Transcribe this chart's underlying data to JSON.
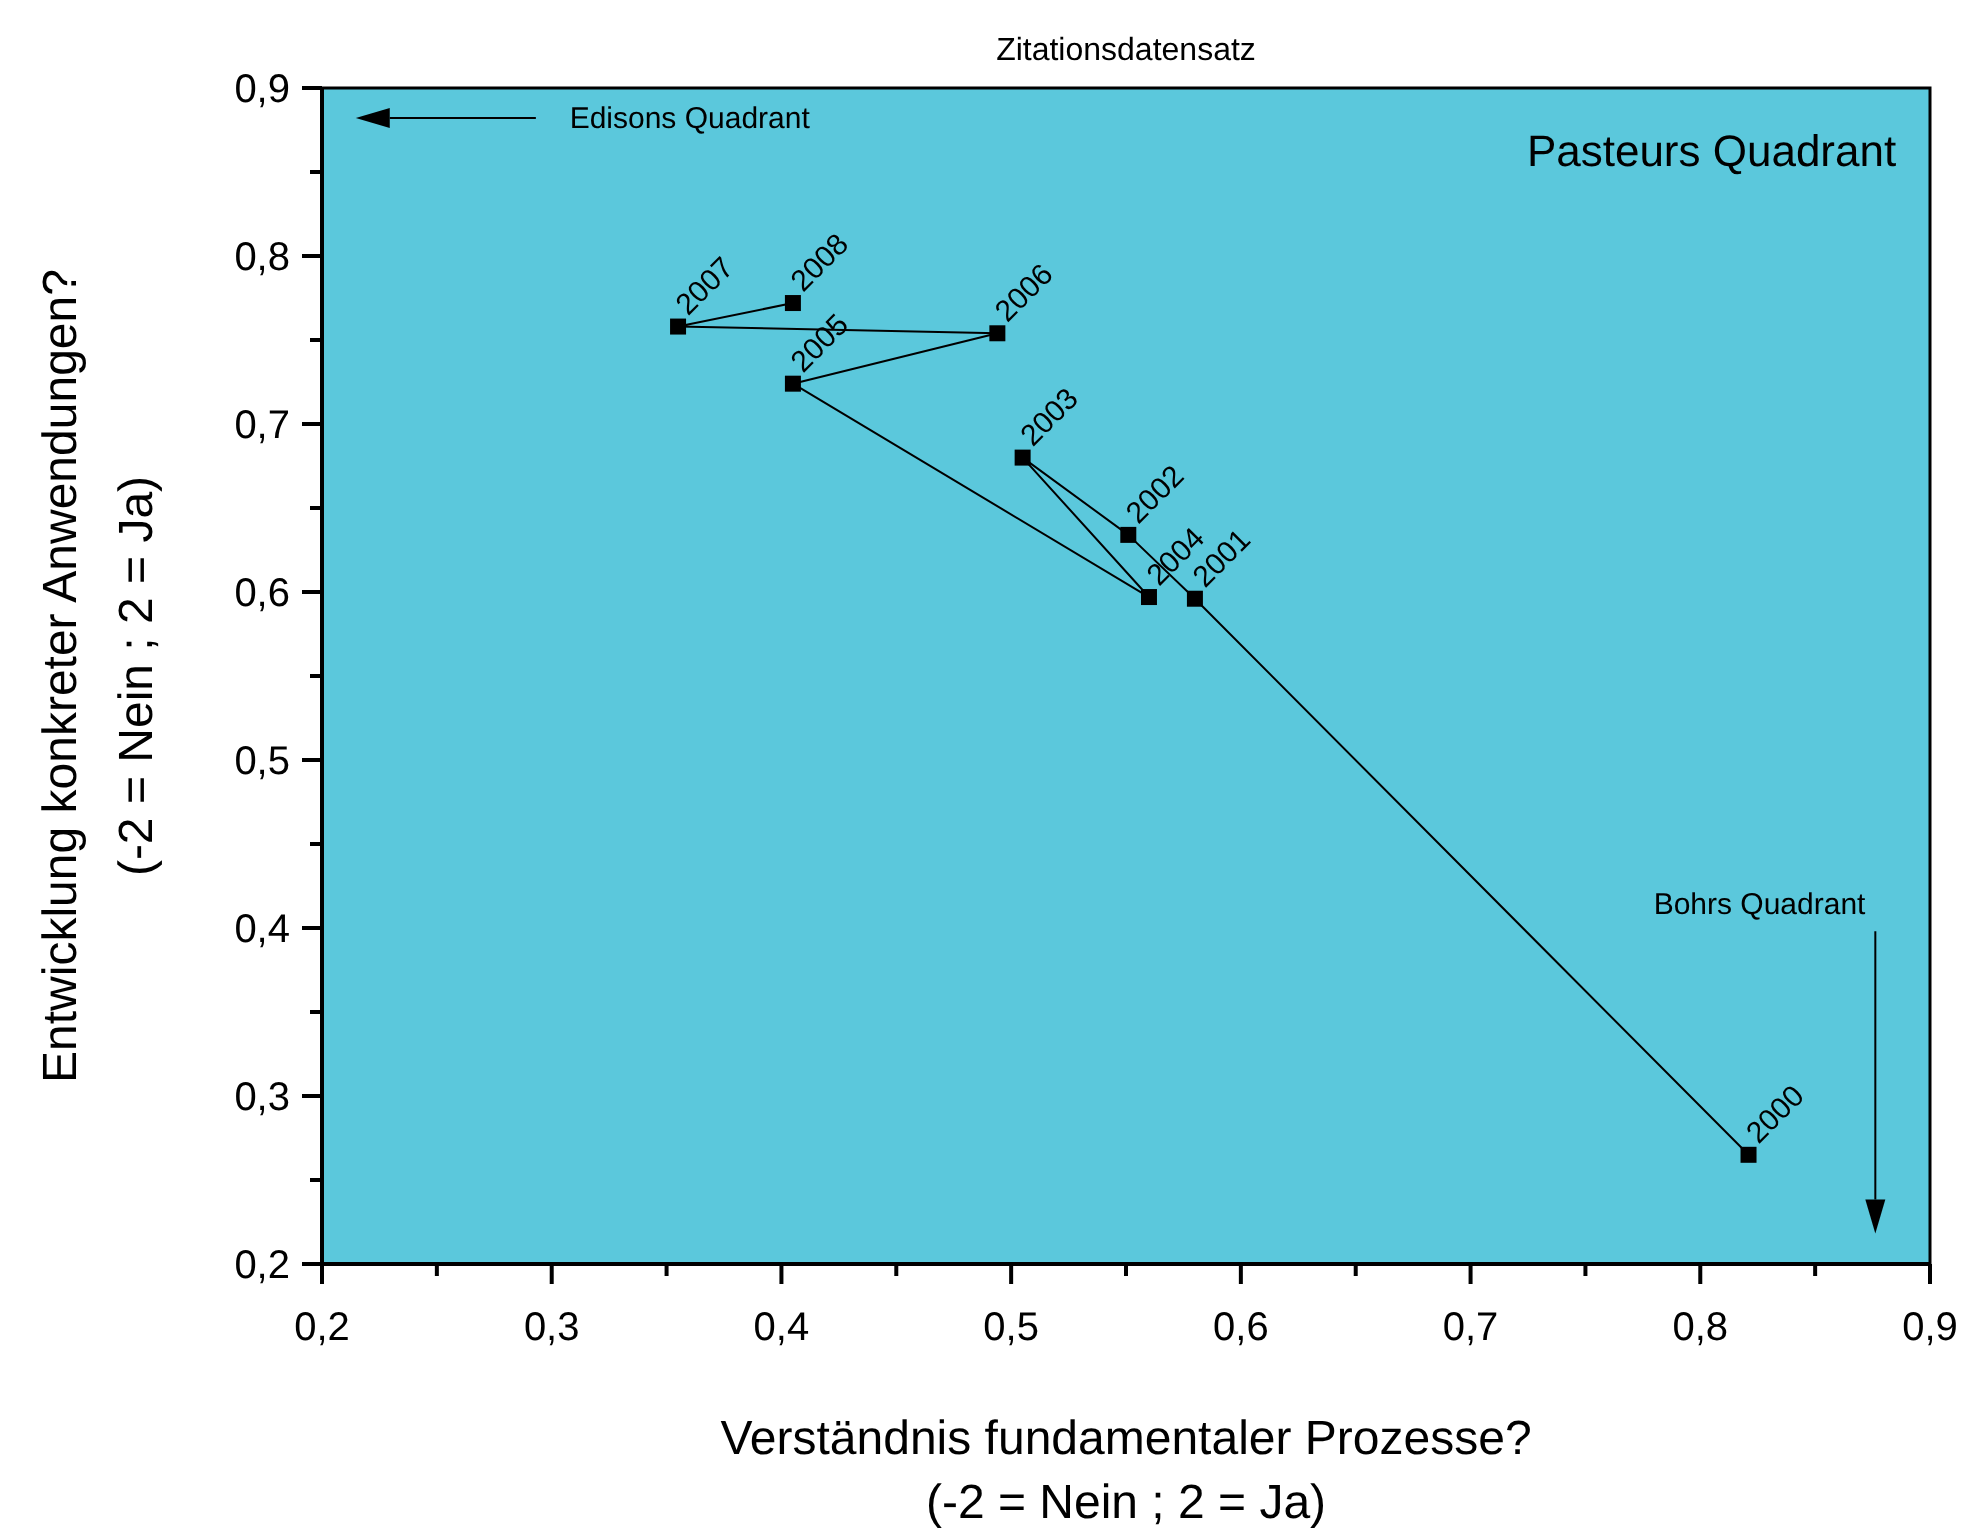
{
  "chart_data": {
    "type": "line",
    "title": "Zitationsdatensatz",
    "xlabel": "Verständnis fundamentaler Prozesse?\n(-2 = Nein ; 2 = Ja)",
    "ylabel": "Entwicklung konkreter Anwendungen?\n(-2 = Nein ; 2 = Ja)",
    "x": [
      0.821,
      0.58,
      0.551,
      0.505,
      0.56,
      0.405,
      0.494,
      0.355,
      0.405
    ],
    "series": [
      {
        "color": "#000000",
        "values": [
          0.265,
          0.596,
          0.634,
          0.68,
          0.597,
          0.724,
          0.754,
          0.758,
          0.772
        ]
      }
    ],
    "xlim": [
      0.2,
      0.9
    ],
    "ylim": [
      0.2,
      0.9
    ],
    "xticks": [
      {
        "value": 0.2,
        "label": "0,2"
      },
      {
        "value": 0.25,
        "label": null
      },
      {
        "value": 0.3,
        "label": "0,3"
      },
      {
        "value": 0.35,
        "label": null
      },
      {
        "value": 0.4,
        "label": "0,4"
      },
      {
        "value": 0.45,
        "label": null
      },
      {
        "value": 0.5,
        "label": "0,5"
      },
      {
        "value": 0.55,
        "label": null
      },
      {
        "value": 0.6,
        "label": "0,6"
      },
      {
        "value": 0.65,
        "label": null
      },
      {
        "value": 0.7,
        "label": "0,7"
      },
      {
        "value": 0.75,
        "label": null
      },
      {
        "value": 0.8,
        "label": "0,8"
      },
      {
        "value": 0.85,
        "label": null
      },
      {
        "value": 0.9,
        "label": "0,9"
      }
    ],
    "yticks": [
      {
        "value": 0.2,
        "label": "0,2"
      },
      {
        "value": 0.25,
        "label": null
      },
      {
        "value": 0.3,
        "label": "0,3"
      },
      {
        "value": 0.35,
        "label": null
      },
      {
        "value": 0.4,
        "label": "0,4"
      },
      {
        "value": 0.45,
        "label": null
      },
      {
        "value": 0.5,
        "label": "0,5"
      },
      {
        "value": 0.55,
        "label": null
      },
      {
        "value": 0.6,
        "label": "0,6"
      },
      {
        "value": 0.65,
        "label": null
      },
      {
        "value": 0.7,
        "label": "0,7"
      },
      {
        "value": 0.75,
        "label": null
      },
      {
        "value": 0.8,
        "label": "0,8"
      },
      {
        "value": 0.85,
        "label": null
      },
      {
        "value": 0.9,
        "label": "0,9"
      }
    ],
    "marker": "square",
    "line_style": "solid",
    "annotations": [
      "Edisons Quadrant",
      "Pasteurs Quadrant",
      "Bohrs Quadrant",
      {
        "text": "2000",
        "x": 0.821,
        "y": 0.265
      },
      {
        "text": "2001",
        "x": 0.58,
        "y": 0.596
      },
      {
        "text": "2002",
        "x": 0.551,
        "y": 0.634
      },
      {
        "text": "2003",
        "x": 0.505,
        "y": 0.68
      },
      {
        "text": "2004",
        "x": 0.56,
        "y": 0.597
      },
      {
        "text": "2005",
        "x": 0.405,
        "y": 0.724
      },
      {
        "text": "2006",
        "x": 0.494,
        "y": 0.754
      },
      {
        "text": "2007",
        "x": 0.355,
        "y": 0.758
      },
      {
        "text": "2008",
        "x": 0.405,
        "y": 0.772
      }
    ]
  }
}
